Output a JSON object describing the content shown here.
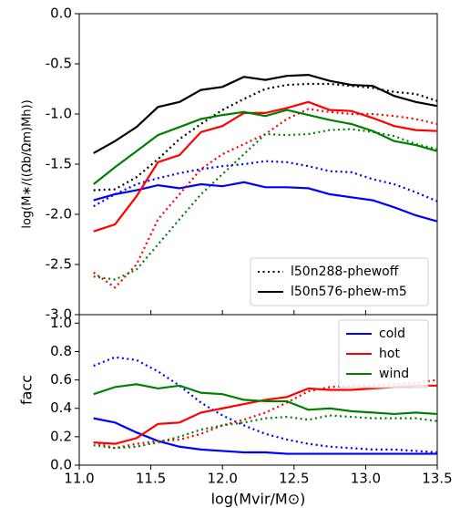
{
  "chart_data": [
    {
      "type": "line",
      "ylabel": "log(M∗/((Ωb/Ωm)Mh))",
      "x": [
        11.1,
        11.25,
        11.4,
        11.55,
        11.7,
        11.85,
        12.0,
        12.15,
        12.3,
        12.45,
        12.6,
        12.75,
        12.9,
        13.05,
        13.2,
        13.35,
        13.5
      ],
      "xlim": [
        11.0,
        13.5
      ],
      "xticks": [
        11,
        11.5,
        12,
        12.5,
        13,
        13.5
      ],
      "ylim": [
        -3.0,
        0.0
      ],
      "yticks": [
        {
          "value": 0.0,
          "label": "0.0"
        },
        {
          "value": -0.5,
          "label": "-0.5"
        },
        {
          "value": -1.0,
          "label": "-1.0"
        },
        {
          "value": -1.5,
          "label": "-1.5"
        },
        {
          "value": -2.0,
          "label": "-2.0"
        },
        {
          "value": -2.5,
          "label": "-2.5"
        },
        {
          "value": -3.0,
          "label": "-3.0"
        }
      ],
      "legend_loc": "lower right",
      "legend": [
        {
          "name": "l50n288-phewoff",
          "color": "#000000",
          "dash": "dotted"
        },
        {
          "name": "l50n576-phew-m5",
          "color": "#000000",
          "dash": "solid"
        }
      ],
      "series": [
        {
          "color": "#000000",
          "dash": "solid",
          "values": [
            -1.39,
            -1.27,
            -1.13,
            -0.93,
            -0.88,
            -0.76,
            -0.73,
            -0.63,
            -0.66,
            -0.62,
            -0.61,
            -0.67,
            -0.71,
            -0.72,
            -0.82,
            -0.88,
            -0.92
          ]
        },
        {
          "color": "#000000",
          "dash": "dotted",
          "values": [
            -1.76,
            -1.75,
            -1.63,
            -1.45,
            -1.25,
            -1.1,
            -0.96,
            -0.85,
            -0.75,
            -0.71,
            -0.7,
            -0.7,
            -0.72,
            -0.74,
            -0.78,
            -0.8,
            -0.87
          ]
        },
        {
          "color": "#0000ff",
          "dash": "solid",
          "values": [
            -1.86,
            -1.8,
            -1.76,
            -1.71,
            -1.74,
            -1.7,
            -1.72,
            -1.68,
            -1.73,
            -1.73,
            -1.74,
            -1.8,
            -1.83,
            -1.86,
            -1.93,
            -2.01,
            -2.07
          ]
        },
        {
          "color": "#0000ff",
          "dash": "dotted",
          "values": [
            -1.92,
            -1.8,
            -1.7,
            -1.64,
            -1.59,
            -1.55,
            -1.52,
            -1.5,
            -1.47,
            -1.48,
            -1.52,
            -1.57,
            -1.58,
            -1.65,
            -1.7,
            -1.78,
            -1.87
          ]
        },
        {
          "color": "#ff0000",
          "dash": "solid",
          "values": [
            -2.17,
            -2.1,
            -1.82,
            -1.48,
            -1.41,
            -1.18,
            -1.12,
            -0.99,
            -0.99,
            -0.94,
            -0.88,
            -0.96,
            -0.97,
            -1.04,
            -1.12,
            -1.16,
            -1.17
          ]
        },
        {
          "color": "#ff0000",
          "dash": "dotted",
          "values": [
            -2.58,
            -2.73,
            -2.5,
            -2.05,
            -1.8,
            -1.55,
            -1.4,
            -1.3,
            -1.2,
            -1.05,
            -0.95,
            -0.98,
            -1.0,
            -1.0,
            -1.02,
            -1.05,
            -1.1
          ]
        },
        {
          "color": "#008000",
          "dash": "solid",
          "values": [
            -1.7,
            -1.53,
            -1.37,
            -1.21,
            -1.13,
            -1.05,
            -1.01,
            -0.98,
            -1.02,
            -0.96,
            -1.01,
            -1.06,
            -1.1,
            -1.17,
            -1.27,
            -1.31,
            -1.37
          ]
        },
        {
          "color": "#008000",
          "dash": "dotted",
          "values": [
            -2.62,
            -2.65,
            -2.55,
            -2.3,
            -2.05,
            -1.8,
            -1.6,
            -1.4,
            -1.2,
            -1.21,
            -1.2,
            -1.16,
            -1.15,
            -1.18,
            -1.22,
            -1.3,
            -1.35
          ]
        }
      ]
    },
    {
      "type": "line",
      "xlabel": "log(Mvir/M⊙)",
      "ylabel": "facc",
      "x": [
        11.1,
        11.25,
        11.4,
        11.55,
        11.7,
        11.85,
        12.0,
        12.15,
        12.3,
        12.45,
        12.6,
        12.75,
        12.9,
        13.05,
        13.2,
        13.35,
        13.5
      ],
      "xlim": [
        11.0,
        13.5
      ],
      "xticks": [
        {
          "value": 11.0,
          "label": "11.0"
        },
        {
          "value": 11.5,
          "label": "11.5"
        },
        {
          "value": 12.0,
          "label": "12.0"
        },
        {
          "value": 12.5,
          "label": "12.5"
        },
        {
          "value": 13.0,
          "label": "13.0"
        },
        {
          "value": 13.5,
          "label": "13.5"
        }
      ],
      "ylim": [
        0.0,
        1.06
      ],
      "yticks": [
        {
          "value": 0.0,
          "label": "0.0"
        },
        0.2,
        0.4,
        0.6,
        0.8,
        {
          "value": 1.0,
          "label": "1.0"
        }
      ],
      "legend_loc": "upper right",
      "legend": [
        {
          "name": "cold",
          "color": "#0000ff",
          "dash": "solid"
        },
        {
          "name": "hot",
          "color": "#ff0000",
          "dash": "solid"
        },
        {
          "name": "wind",
          "color": "#008000",
          "dash": "solid"
        }
      ],
      "series": [
        {
          "color": "#0000ff",
          "dash": "solid",
          "values": [
            0.33,
            0.3,
            0.23,
            0.17,
            0.13,
            0.11,
            0.1,
            0.09,
            0.09,
            0.08,
            0.08,
            0.08,
            0.08,
            0.08,
            0.08,
            0.08,
            0.08
          ]
        },
        {
          "color": "#0000ff",
          "dash": "dotted",
          "values": [
            0.7,
            0.76,
            0.74,
            0.66,
            0.56,
            0.44,
            0.35,
            0.28,
            0.22,
            0.18,
            0.15,
            0.13,
            0.12,
            0.11,
            0.11,
            0.1,
            0.09
          ]
        },
        {
          "color": "#ff0000",
          "dash": "solid",
          "values": [
            0.16,
            0.15,
            0.19,
            0.29,
            0.3,
            0.37,
            0.4,
            0.43,
            0.46,
            0.48,
            0.54,
            0.53,
            0.53,
            0.54,
            0.55,
            0.56,
            0.56
          ]
        },
        {
          "color": "#ff0000",
          "dash": "dotted",
          "values": [
            0.16,
            0.12,
            0.15,
            0.17,
            0.18,
            0.22,
            0.28,
            0.32,
            0.37,
            0.44,
            0.52,
            0.55,
            0.56,
            0.56,
            0.57,
            0.58,
            0.6
          ]
        },
        {
          "color": "#008000",
          "dash": "solid",
          "values": [
            0.5,
            0.55,
            0.57,
            0.54,
            0.56,
            0.51,
            0.5,
            0.46,
            0.45,
            0.45,
            0.39,
            0.4,
            0.38,
            0.37,
            0.36,
            0.37,
            0.36
          ]
        },
        {
          "color": "#008000",
          "dash": "dotted",
          "values": [
            0.14,
            0.12,
            0.13,
            0.16,
            0.2,
            0.25,
            0.28,
            0.3,
            0.33,
            0.34,
            0.32,
            0.35,
            0.34,
            0.33,
            0.33,
            0.33,
            0.31
          ]
        }
      ]
    }
  ]
}
